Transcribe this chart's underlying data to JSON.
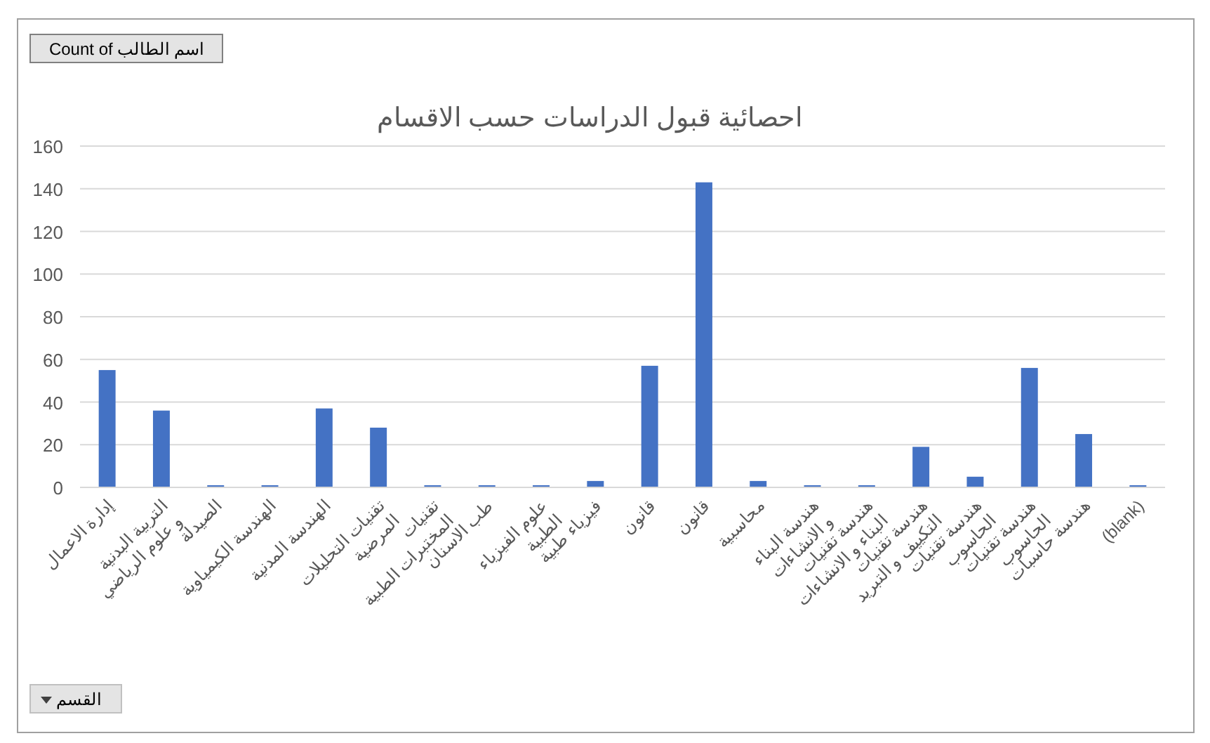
{
  "chart_data": {
    "type": "bar",
    "title": "احصائية قبول الدراسات حسب الاقسام",
    "categories": [
      "إدارة الاعمال",
      "التربية البدنية و علوم الرياضي",
      "الصيدلة",
      "الهندسة الكيمياوية",
      "الهندسة المدنية",
      "تقنيات التحليلات المرضية",
      "تقنيات المختبرات الطبية",
      "طب الاسنان",
      "علوم الفيزياء الطبية",
      "فيزياء طبية",
      "قانون",
      "قانون",
      "محاسبية",
      "هندسة البناء و الانشاءات",
      "هندسة تقنيات البناء و الانشاءات",
      "هندسة تقنيات التكييف و التبريد",
      "هندسة تقنيات الحاسوب",
      "هندسة تقنيات الحاسوب",
      "هندسة حاسبات",
      "(blank)"
    ],
    "values": [
      55,
      36,
      1,
      1,
      37,
      28,
      1,
      1,
      1,
      3,
      57,
      143,
      3,
      1,
      1,
      19,
      5,
      56,
      25,
      1
    ],
    "color": "#4472c4",
    "ylim": [
      0,
      160
    ],
    "yticks": [
      0,
      20,
      40,
      60,
      80,
      100,
      120,
      140,
      160
    ],
    "grid": "y",
    "annotations": [
      "Count of اسم الطالب",
      "القسم"
    ]
  }
}
